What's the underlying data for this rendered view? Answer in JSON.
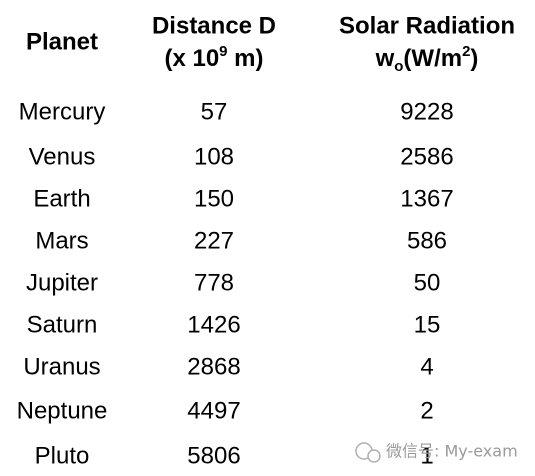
{
  "table": {
    "header": {
      "planet": "Planet",
      "distance": {
        "line1": "Distance D",
        "pre": "(x 10",
        "sup": "9",
        "post": " m)"
      },
      "radiation": {
        "line1": "Solar Radiation",
        "pre": "w",
        "sub": "o",
        "mid": "(W/m",
        "sup": "2",
        "post": ")"
      }
    },
    "rows": [
      [
        "Mercury",
        57,
        9228
      ],
      [
        "Venus",
        108,
        2586
      ],
      [
        "Earth",
        150,
        1367
      ],
      [
        "Mars",
        227,
        586
      ],
      [
        "Jupiter",
        778,
        50
      ],
      [
        "Saturn",
        1426,
        15
      ],
      [
        "Uranus",
        2868,
        4
      ],
      [
        "Neptune",
        4497,
        2
      ],
      [
        "Pluto",
        5806,
        1
      ]
    ],
    "highlight_row": 2,
    "highlight_color": "#e3141b"
  },
  "watermark": "微信号: My-exam"
}
